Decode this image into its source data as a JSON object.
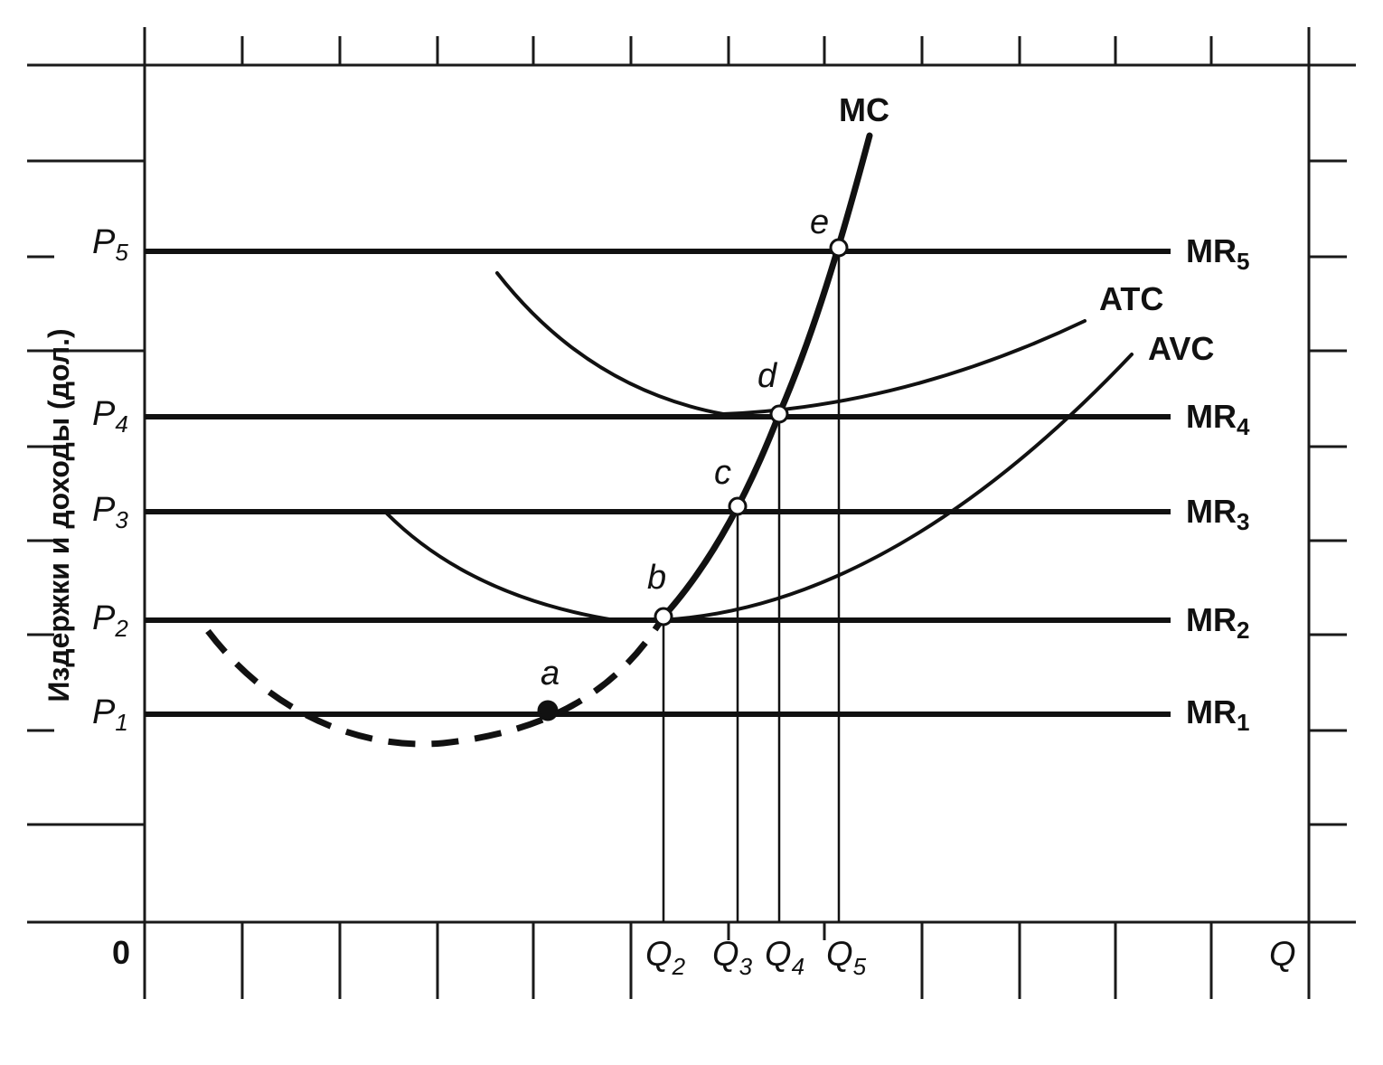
{
  "y_axis_label": "Издержки и доходы (дол.)",
  "origin_label": "0",
  "x_axis_label": "Q",
  "prices": [
    {
      "id": "p1",
      "base": "P",
      "sub": "1"
    },
    {
      "id": "p2",
      "base": "P",
      "sub": "2"
    },
    {
      "id": "p3",
      "base": "P",
      "sub": "3"
    },
    {
      "id": "p4",
      "base": "P",
      "sub": "4"
    },
    {
      "id": "p5",
      "base": "P",
      "sub": "5"
    }
  ],
  "revenue_lines": [
    {
      "id": "mr1",
      "base": "MR",
      "sub": "1"
    },
    {
      "id": "mr2",
      "base": "MR",
      "sub": "2"
    },
    {
      "id": "mr3",
      "base": "MR",
      "sub": "3"
    },
    {
      "id": "mr4",
      "base": "MR",
      "sub": "4"
    },
    {
      "id": "mr5",
      "base": "MR",
      "sub": "5"
    }
  ],
  "quantities": [
    {
      "id": "q2",
      "base": "Q",
      "sub": "2"
    },
    {
      "id": "q3",
      "base": "Q",
      "sub": "3"
    },
    {
      "id": "q4",
      "base": "Q",
      "sub": "4"
    },
    {
      "id": "q5",
      "base": "Q",
      "sub": "5"
    }
  ],
  "curves": {
    "mc": "MC",
    "atc": "ATC",
    "avc": "AVC"
  },
  "points": [
    "a",
    "b",
    "c",
    "d",
    "e"
  ]
}
